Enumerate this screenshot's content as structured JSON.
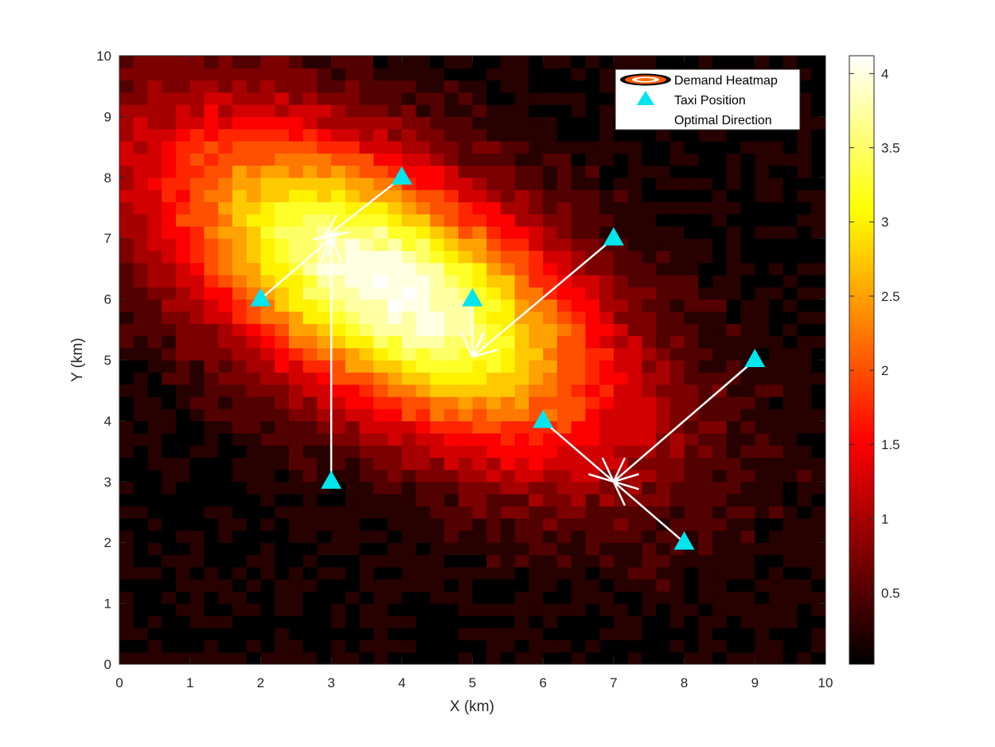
{
  "chart_data": {
    "type": "heatmap",
    "title": "",
    "xlabel": "X (km)",
    "ylabel": "Y (km)",
    "xlim": [
      0,
      10
    ],
    "ylim": [
      0,
      10
    ],
    "xticks": [
      "0",
      "1",
      "2",
      "3",
      "4",
      "5",
      "6",
      "7",
      "8",
      "9",
      "10"
    ],
    "yticks": [
      "0",
      "1",
      "2",
      "3",
      "4",
      "5",
      "6",
      "7",
      "8",
      "9",
      "10"
    ],
    "colormap": "hot",
    "colorbar": {
      "range": [
        0.02,
        4.12
      ],
      "ticks": [
        0.5,
        1,
        1.5,
        2,
        2.5,
        3,
        3.5,
        4
      ],
      "tick_labels": [
        "0.5",
        "1",
        "1.5",
        "2",
        "2.5",
        "3",
        "3.5",
        "4"
      ]
    },
    "demand_field": {
      "shape": "gaussian",
      "center": [
        3.8,
        6.2
      ],
      "peak": 4.1,
      "orientation": "elongated from upper-left to lower-right",
      "axis_direction_deg": -37,
      "major_sigma": 2.6,
      "minor_sigma": 1.25,
      "background": 0.1
    },
    "legend": {
      "placement": "top-right",
      "entries": [
        "Demand Heatmap",
        "Taxi Position",
        "Optimal Direction"
      ]
    },
    "series": [
      {
        "name": "Taxi Position",
        "marker": "triangle",
        "color": "#00e5ee",
        "points": [
          [
            2,
            6
          ],
          [
            3,
            3
          ],
          [
            4,
            8
          ],
          [
            5,
            6
          ],
          [
            6,
            4
          ],
          [
            7,
            7
          ],
          [
            8,
            2
          ],
          [
            9,
            5
          ]
        ]
      },
      {
        "name": "Optimal Direction",
        "color": "#ffffff",
        "arrows": [
          {
            "from": [
              2,
              6
            ],
            "to": [
              3.1,
              7.1
            ]
          },
          {
            "from": [
              3,
              3
            ],
            "to": [
              3,
              7
            ]
          },
          {
            "from": [
              4,
              8
            ],
            "to": [
              2.9,
              7.0
            ]
          },
          {
            "from": [
              5,
              6
            ],
            "to": [
              5,
              5.05
            ]
          },
          {
            "from": [
              6,
              4
            ],
            "to": [
              7,
              3
            ]
          },
          {
            "from": [
              7,
              7
            ],
            "to": [
              5,
              5.05
            ]
          },
          {
            "from": [
              8,
              2
            ],
            "to": [
              7,
              3
            ]
          },
          {
            "from": [
              9,
              5
            ],
            "to": [
              7,
              3
            ]
          }
        ]
      }
    ]
  }
}
